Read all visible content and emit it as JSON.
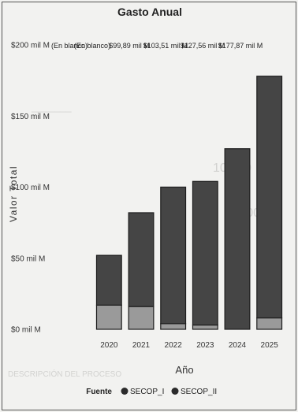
{
  "chart_data": {
    "type": "bar",
    "stacked": true,
    "title": "Gasto Anual",
    "xlabel": "Año",
    "ylabel": "Valor Total",
    "categories": [
      "2020",
      "2021",
      "2022",
      "2023",
      "2024",
      "2025"
    ],
    "series": [
      {
        "name": "SECOP_I",
        "values": [
          17,
          16,
          4,
          3,
          0,
          8
        ],
        "color": "#9a9a9a"
      },
      {
        "name": "SECOP_II",
        "values": [
          35,
          66,
          96,
          101,
          127,
          170
        ],
        "color": "#454545"
      }
    ],
    "data_labels": [
      "(En blanco)",
      "(En blanco)",
      "$99,89 mil M",
      "$103,51 mil M",
      "$127,56 mil M",
      "$177,87 mil M"
    ],
    "y_ticks": [
      {
        "value": 0,
        "label": "$0 mil M"
      },
      {
        "value": 50,
        "label": "$50 mil M"
      },
      {
        "value": 100,
        "label": "$100 mil M"
      },
      {
        "value": 150,
        "label": "$150 mil M"
      },
      {
        "value": 200,
        "label": "$200 mil M"
      }
    ],
    "ylim": [
      0,
      200
    ],
    "legend_title": "Fuente",
    "legend_position": "bottom",
    "grid": false
  }
}
